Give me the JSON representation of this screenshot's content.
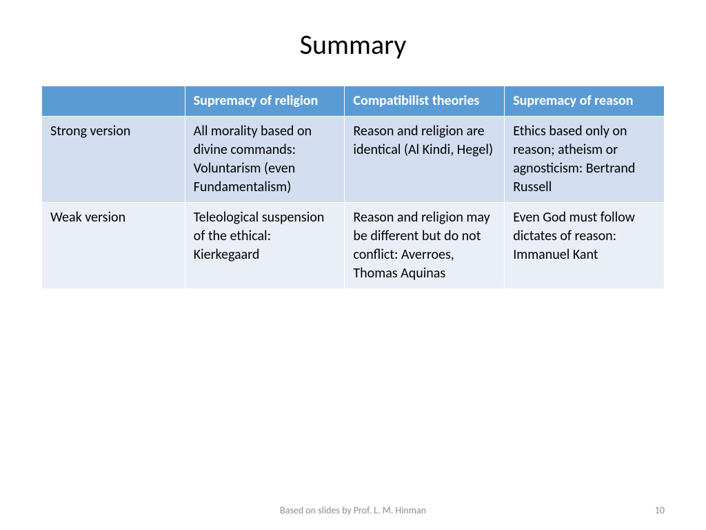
{
  "title": "Summary",
  "table": {
    "header_bg": "#5b9bd5",
    "header_color": "#ffffff",
    "row_strong_bg": "#d2deef",
    "row_weak_bg": "#eaeff7",
    "cell_color": "#000000",
    "border_color": "#ffffff",
    "columns": [
      "",
      "Supremacy of religion",
      "Compatibilist theories",
      "Supremacy of reason"
    ],
    "rows": [
      {
        "label": "Strong version",
        "cells": [
          "All morality based on divine commands: Voluntarism (even Fundamentalism)",
          "Reason and religion are identical (Al Kindi, Hegel)",
          "Ethics based only on reason; atheism or agnosticism: Bertrand Russell"
        ]
      },
      {
        "label": "Weak version",
        "cells": [
          "Teleological suspension of the ethical: Kierkegaard",
          "Reason and religion may be different but do not conflict: Averroes, Thomas Aquinas",
          "Even God must follow dictates of reason: Immanuel Kant"
        ]
      }
    ]
  },
  "footer": {
    "attribution": "Based on slides by Prof. L. M. Hinman",
    "page_number": "10",
    "text_color": "#8c8c8c"
  },
  "background_color": "#ffffff",
  "title_fontsize": 40,
  "cell_fontsize": 20,
  "footer_fontsize": 14
}
